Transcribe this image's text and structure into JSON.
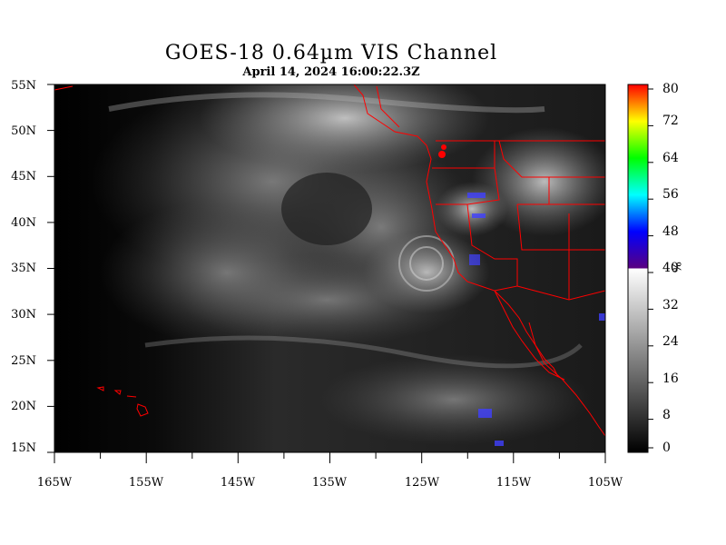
{
  "title": "GOES-18  0.64µm VIS Channel",
  "subtitle": "April 14,  2024 16:00:22.3Z",
  "lat_labels": [
    "55N",
    "50N",
    "45N",
    "40N",
    "35N",
    "30N",
    "25N",
    "20N",
    "15N"
  ],
  "lon_labels": [
    "165W",
    "155W",
    "145W",
    "135W",
    "125W",
    "115W",
    "105W"
  ],
  "colorbar": {
    "labels": [
      "80",
      "72",
      "64",
      "56",
      "48",
      "40",
      "32",
      "24",
      "16",
      "8",
      "0"
    ],
    "unit": "%",
    "range": [
      0,
      80
    ]
  },
  "colors": {
    "coastline": "#ff0000",
    "background": "#000000",
    "cloud": "#e8e8e8"
  }
}
